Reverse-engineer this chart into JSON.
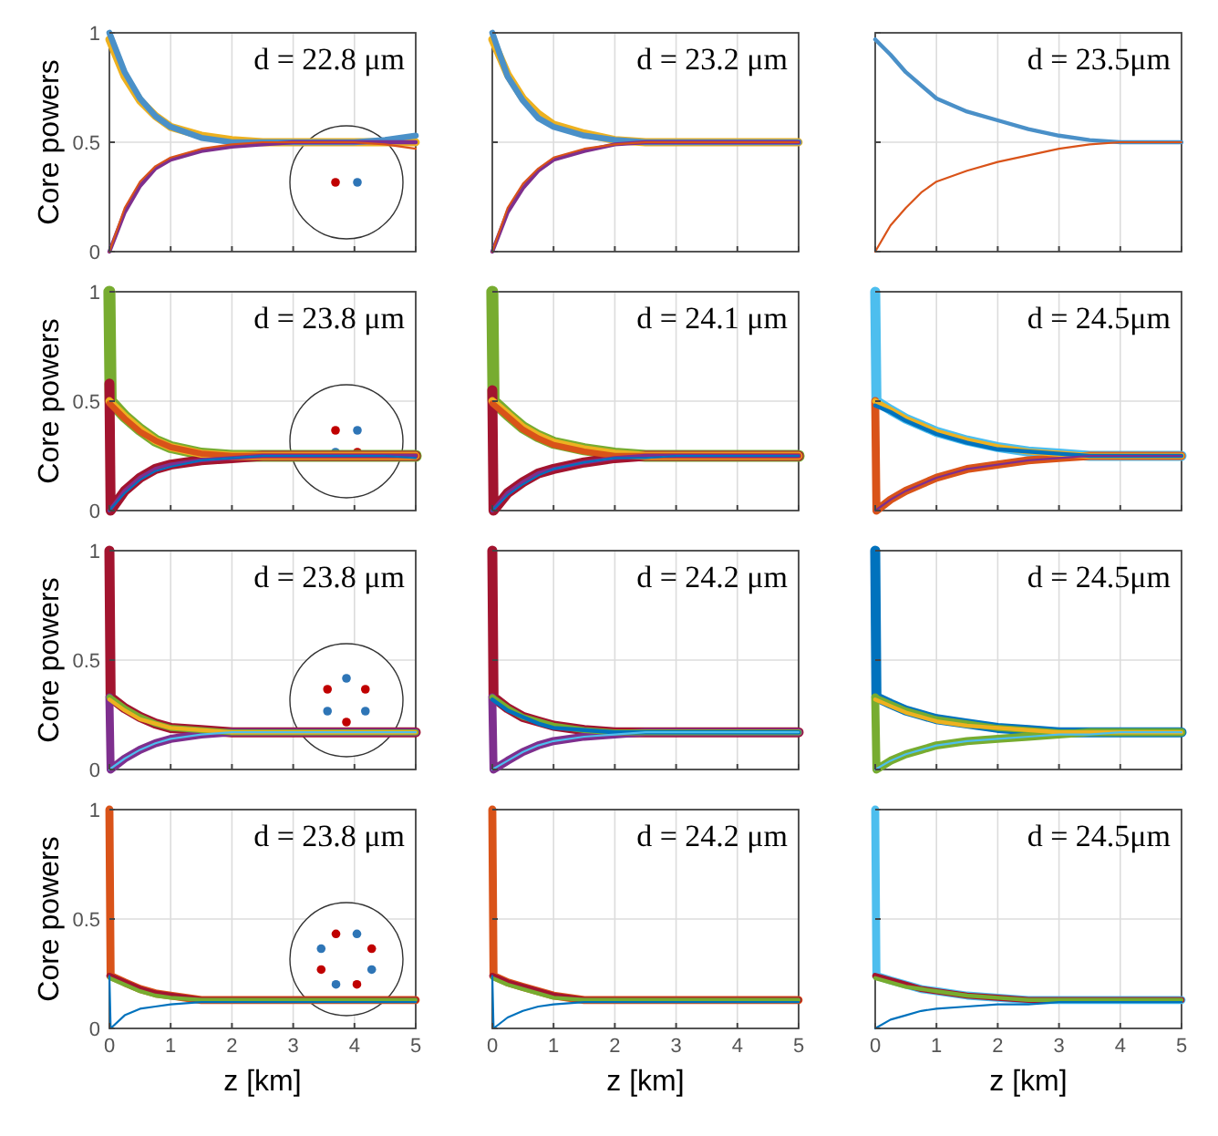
{
  "chart_data": [
    {
      "type": "line",
      "ylabel": "Core powers",
      "annotations": [
        "d = 22.8 μm"
      ],
      "x": [
        0,
        0.25,
        0.5,
        0.75,
        1,
        1.5,
        2,
        2.5,
        3,
        3.5,
        4,
        4.5,
        5
      ],
      "xlim": [
        0,
        5
      ],
      "xticks": [
        0,
        1,
        2,
        3,
        4,
        5
      ],
      "ylim": [
        0,
        1
      ],
      "yticks": [
        0,
        0.5,
        1
      ],
      "grid": true,
      "tick_labels": "y",
      "series": [
        {
          "color": "#edb120",
          "values": [
            0.97,
            0.8,
            0.69,
            0.62,
            0.57,
            0.53,
            0.51,
            0.5,
            0.5,
            0.5,
            0.5,
            0.5,
            0.5
          ]
        },
        {
          "color": "#4a90c8",
          "values": [
            1,
            0.82,
            0.7,
            0.62,
            0.57,
            0.52,
            0.5,
            0.5,
            0.5,
            0.5,
            0.5,
            0.51,
            0.53
          ]
        },
        {
          "color": "#7e2f8e",
          "values": [
            0,
            0.18,
            0.3,
            0.38,
            0.42,
            0.46,
            0.48,
            0.49,
            0.5,
            0.5,
            0.5,
            0.5,
            0.5
          ]
        },
        {
          "color": "#d95319",
          "values": [
            0,
            0.2,
            0.32,
            0.39,
            0.43,
            0.47,
            0.49,
            0.5,
            0.5,
            0.5,
            0.5,
            0.49,
            0.47
          ]
        }
      ]
    },
    {
      "type": "line",
      "annotations": [
        "d = 23.2 μm"
      ],
      "x": [
        0,
        0.25,
        0.5,
        0.75,
        1,
        1.5,
        2,
        2.5,
        3,
        3.5,
        4,
        4.5,
        5
      ],
      "xlim": [
        0,
        5
      ],
      "xticks": [
        0,
        1,
        2,
        3,
        4,
        5
      ],
      "ylim": [
        0,
        1
      ],
      "yticks": [
        0,
        0.5,
        1
      ],
      "grid": true,
      "tick_labels": false,
      "series": [
        {
          "color": "#edb120",
          "values": [
            0.97,
            0.81,
            0.7,
            0.63,
            0.58,
            0.54,
            0.51,
            0.5,
            0.5,
            0.5,
            0.5,
            0.5,
            0.5
          ]
        },
        {
          "color": "#4a90c8",
          "values": [
            1,
            0.8,
            0.69,
            0.61,
            0.57,
            0.53,
            0.51,
            0.5,
            0.5,
            0.5,
            0.5,
            0.5,
            0.5
          ]
        },
        {
          "color": "#7e2f8e",
          "values": [
            0,
            0.18,
            0.29,
            0.37,
            0.42,
            0.46,
            0.49,
            0.5,
            0.5,
            0.5,
            0.5,
            0.5,
            0.5
          ]
        },
        {
          "color": "#d95319",
          "values": [
            0,
            0.2,
            0.31,
            0.38,
            0.43,
            0.47,
            0.49,
            0.5,
            0.5,
            0.5,
            0.5,
            0.5,
            0.5
          ]
        }
      ]
    },
    {
      "type": "line",
      "annotations": [
        "d = 23.5μm"
      ],
      "x": [
        0,
        0.25,
        0.5,
        0.75,
        1,
        1.5,
        2,
        2.5,
        3,
        3.5,
        4,
        4.5,
        5
      ],
      "xlim": [
        0,
        5
      ],
      "xticks": [
        0,
        1,
        2,
        3,
        4,
        5
      ],
      "ylim": [
        0,
        1
      ],
      "yticks": [
        0,
        0.5,
        1
      ],
      "grid": true,
      "tick_labels": false,
      "series": [
        {
          "color": "#4a90c8",
          "values": [
            0.97,
            0.9,
            0.82,
            0.76,
            0.7,
            0.64,
            0.6,
            0.56,
            0.53,
            0.51,
            0.5,
            0.5,
            0.5
          ]
        },
        {
          "color": "#d95319",
          "values": [
            0,
            0.12,
            0.2,
            0.27,
            0.32,
            0.37,
            0.41,
            0.44,
            0.47,
            0.49,
            0.5,
            0.5,
            0.5
          ]
        }
      ]
    },
    {
      "type": "line",
      "ylabel": "Core powers",
      "annotations": [
        "d = 23.8 μm"
      ],
      "x": [
        0,
        0.25,
        0.5,
        0.75,
        1,
        1.5,
        2,
        2.5,
        3,
        3.5,
        4,
        4.5,
        5
      ],
      "xlim": [
        0,
        5
      ],
      "xticks": [
        0,
        1,
        2,
        3,
        4,
        5
      ],
      "ylim": [
        0,
        1
      ],
      "yticks": [
        0,
        0.5,
        1
      ],
      "grid": true,
      "tick_labels": "y",
      "series": [
        {
          "color": "#77ac30",
          "x": [
            0,
            0.02,
            0.25,
            0.5,
            0.75,
            1,
            1.5,
            2,
            2.5,
            3,
            3.5,
            4,
            4.5,
            5
          ],
          "values": [
            1,
            0.5,
            0.43,
            0.37,
            0.32,
            0.29,
            0.26,
            0.25,
            0.25,
            0.25,
            0.25,
            0.25,
            0.25,
            0.25
          ]
        },
        {
          "color": "#a2142f",
          "x": [
            0,
            0.02,
            0.25,
            0.5,
            0.75,
            1,
            1.5,
            2,
            2.5,
            3,
            3.5,
            4,
            4.5,
            5
          ],
          "values": [
            0.58,
            0,
            0.09,
            0.15,
            0.19,
            0.21,
            0.23,
            0.24,
            0.25,
            0.25,
            0.25,
            0.25,
            0.25,
            0.25
          ]
        },
        {
          "color": "#edb120",
          "values": [
            0.5,
            0.43,
            0.37,
            0.32,
            0.29,
            0.26,
            0.25,
            0.25,
            0.25,
            0.25,
            0.25,
            0.25,
            0.25
          ]
        },
        {
          "color": "#d95319",
          "values": [
            0.49,
            0.42,
            0.36,
            0.32,
            0.29,
            0.26,
            0.25,
            0.25,
            0.25,
            0.25,
            0.25,
            0.25,
            0.25
          ]
        },
        {
          "color": "#7e2f8e",
          "values": [
            0,
            0.09,
            0.15,
            0.19,
            0.21,
            0.23,
            0.24,
            0.25,
            0.25,
            0.25,
            0.25,
            0.25,
            0.25
          ]
        },
        {
          "color": "#0072bd",
          "values": [
            0,
            0.08,
            0.14,
            0.18,
            0.2,
            0.23,
            0.24,
            0.25,
            0.25,
            0.25,
            0.25,
            0.25,
            0.24
          ]
        }
      ]
    },
    {
      "type": "line",
      "annotations": [
        "d = 24.1 μm"
      ],
      "x": [
        0,
        0.25,
        0.5,
        0.75,
        1,
        1.5,
        2,
        2.5,
        3,
        3.5,
        4,
        4.5,
        5
      ],
      "xlim": [
        0,
        5
      ],
      "xticks": [
        0,
        1,
        2,
        3,
        4,
        5
      ],
      "ylim": [
        0,
        1
      ],
      "yticks": [
        0,
        0.5,
        1
      ],
      "grid": true,
      "tick_labels": false,
      "series": [
        {
          "color": "#77ac30",
          "x": [
            0,
            0.02,
            0.25,
            0.5,
            0.75,
            1,
            1.5,
            2,
            2.5,
            3,
            3.5,
            4,
            4.5,
            5
          ],
          "values": [
            1,
            0.5,
            0.44,
            0.38,
            0.34,
            0.31,
            0.28,
            0.26,
            0.25,
            0.25,
            0.25,
            0.25,
            0.25,
            0.25
          ]
        },
        {
          "color": "#a2142f",
          "x": [
            0,
            0.02,
            0.25,
            0.5,
            0.75,
            1,
            1.5,
            2,
            2.5,
            3,
            3.5,
            4,
            4.5,
            5
          ],
          "values": [
            0.55,
            0,
            0.08,
            0.13,
            0.17,
            0.19,
            0.22,
            0.24,
            0.25,
            0.25,
            0.25,
            0.25,
            0.25,
            0.25
          ]
        },
        {
          "color": "#edb120",
          "values": [
            0.5,
            0.44,
            0.38,
            0.34,
            0.31,
            0.28,
            0.26,
            0.25,
            0.25,
            0.25,
            0.25,
            0.25,
            0.25
          ]
        },
        {
          "color": "#d95319",
          "values": [
            0.49,
            0.43,
            0.37,
            0.33,
            0.3,
            0.27,
            0.25,
            0.25,
            0.25,
            0.25,
            0.25,
            0.25,
            0.25
          ]
        },
        {
          "color": "#7e2f8e",
          "values": [
            0,
            0.08,
            0.13,
            0.17,
            0.19,
            0.22,
            0.24,
            0.25,
            0.25,
            0.25,
            0.25,
            0.25,
            0.25
          ]
        },
        {
          "color": "#0072bd",
          "values": [
            0,
            0.07,
            0.12,
            0.16,
            0.19,
            0.22,
            0.24,
            0.24,
            0.25,
            0.25,
            0.25,
            0.25,
            0.25
          ]
        }
      ]
    },
    {
      "type": "line",
      "annotations": [
        "d = 24.5μm"
      ],
      "x": [
        0,
        0.25,
        0.5,
        0.75,
        1,
        1.5,
        2,
        2.5,
        3,
        3.5,
        4,
        4.5,
        5
      ],
      "xlim": [
        0,
        5
      ],
      "xticks": [
        0,
        1,
        2,
        3,
        4,
        5
      ],
      "ylim": [
        0,
        1
      ],
      "yticks": [
        0,
        0.5,
        1
      ],
      "grid": true,
      "tick_labels": false,
      "series": [
        {
          "color": "#4dbeee",
          "x": [
            0,
            0.02,
            0.25,
            0.5,
            0.75,
            1,
            1.5,
            2,
            2.5,
            3,
            3.5,
            4,
            4.5,
            5
          ],
          "values": [
            1,
            0.5,
            0.46,
            0.42,
            0.39,
            0.36,
            0.32,
            0.29,
            0.27,
            0.26,
            0.25,
            0.25,
            0.25,
            0.25
          ]
        },
        {
          "color": "#d95319",
          "x": [
            0,
            0.02,
            0.25,
            0.5,
            0.75,
            1,
            1.5,
            2,
            2.5,
            3,
            3.5,
            4,
            4.5,
            5
          ],
          "values": [
            0.5,
            0,
            0.05,
            0.09,
            0.12,
            0.15,
            0.19,
            0.21,
            0.23,
            0.24,
            0.25,
            0.25,
            0.25,
            0.25
          ]
        },
        {
          "color": "#edb120",
          "values": [
            0.5,
            0.46,
            0.42,
            0.39,
            0.36,
            0.32,
            0.29,
            0.27,
            0.26,
            0.25,
            0.25,
            0.25,
            0.25
          ]
        },
        {
          "color": "#0072bd",
          "values": [
            0.48,
            0.45,
            0.41,
            0.38,
            0.35,
            0.31,
            0.28,
            0.27,
            0.26,
            0.25,
            0.25,
            0.25,
            0.25
          ]
        },
        {
          "color": "#7e2f8e",
          "values": [
            0,
            0.05,
            0.09,
            0.12,
            0.15,
            0.19,
            0.21,
            0.23,
            0.24,
            0.25,
            0.25,
            0.25,
            0.25
          ]
        }
      ]
    },
    {
      "type": "line",
      "ylabel": "Core powers",
      "annotations": [
        "d = 23.8 μm"
      ],
      "x": [
        0,
        0.25,
        0.5,
        0.75,
        1,
        1.5,
        2,
        2.5,
        3,
        3.5,
        4,
        4.5,
        5
      ],
      "xlim": [
        0,
        5
      ],
      "xticks": [
        0,
        1,
        2,
        3,
        4,
        5
      ],
      "ylim": [
        0,
        1
      ],
      "yticks": [
        0,
        0.5,
        1
      ],
      "grid": true,
      "tick_labels": "y",
      "series": [
        {
          "color": "#a2142f",
          "x": [
            0,
            0.02,
            0.25,
            0.5,
            0.75,
            1,
            1.5,
            2,
            2.5,
            3,
            3.5,
            4,
            4.5,
            5
          ],
          "values": [
            1,
            0.33,
            0.28,
            0.24,
            0.21,
            0.19,
            0.18,
            0.17,
            0.17,
            0.17,
            0.17,
            0.17,
            0.17,
            0.17
          ]
        },
        {
          "color": "#7e2f8e",
          "x": [
            0,
            0.02,
            0.25,
            0.5,
            0.75,
            1,
            1.5,
            2,
            2.5,
            3,
            3.5,
            4,
            4.5,
            5
          ],
          "values": [
            0.33,
            0,
            0.05,
            0.09,
            0.12,
            0.14,
            0.16,
            0.17,
            0.17,
            0.17,
            0.17,
            0.17,
            0.17,
            0.17
          ]
        },
        {
          "color": "#77ac30",
          "values": [
            0.33,
            0.28,
            0.24,
            0.21,
            0.19,
            0.18,
            0.17,
            0.17,
            0.17,
            0.17,
            0.17,
            0.17,
            0.17
          ]
        },
        {
          "color": "#edb120",
          "values": [
            0.32,
            0.27,
            0.23,
            0.21,
            0.19,
            0.18,
            0.17,
            0.17,
            0.17,
            0.17,
            0.17,
            0.17,
            0.17
          ]
        },
        {
          "color": "#4dbeee",
          "values": [
            0,
            0.05,
            0.09,
            0.12,
            0.14,
            0.16,
            0.17,
            0.17,
            0.17,
            0.17,
            0.17,
            0.17,
            0.17
          ]
        }
      ]
    },
    {
      "type": "line",
      "annotations": [
        "d = 24.2 μm"
      ],
      "x": [
        0,
        0.25,
        0.5,
        0.75,
        1,
        1.5,
        2,
        2.5,
        3,
        3.5,
        4,
        4.5,
        5
      ],
      "xlim": [
        0,
        5
      ],
      "xticks": [
        0,
        1,
        2,
        3,
        4,
        5
      ],
      "ylim": [
        0,
        1
      ],
      "yticks": [
        0,
        0.5,
        1
      ],
      "grid": true,
      "tick_labels": false,
      "series": [
        {
          "color": "#a2142f",
          "x": [
            0,
            0.02,
            0.25,
            0.5,
            0.75,
            1,
            1.5,
            2,
            2.5,
            3,
            3.5,
            4,
            4.5,
            5
          ],
          "values": [
            1,
            0.33,
            0.28,
            0.24,
            0.22,
            0.2,
            0.18,
            0.17,
            0.17,
            0.17,
            0.17,
            0.17,
            0.17,
            0.17
          ]
        },
        {
          "color": "#7e2f8e",
          "x": [
            0,
            0.02,
            0.25,
            0.5,
            0.75,
            1,
            1.5,
            2,
            2.5,
            3,
            3.5,
            4,
            4.5,
            5
          ],
          "values": [
            0.33,
            0,
            0.04,
            0.08,
            0.11,
            0.13,
            0.15,
            0.16,
            0.17,
            0.17,
            0.17,
            0.17,
            0.17,
            0.17
          ]
        },
        {
          "color": "#77ac30",
          "values": [
            0.33,
            0.28,
            0.24,
            0.22,
            0.2,
            0.18,
            0.17,
            0.17,
            0.17,
            0.17,
            0.17,
            0.17,
            0.17
          ]
        },
        {
          "color": "#0072bd",
          "values": [
            0.32,
            0.27,
            0.24,
            0.21,
            0.19,
            0.18,
            0.17,
            0.17,
            0.17,
            0.17,
            0.17,
            0.17,
            0.17
          ]
        },
        {
          "color": "#4dbeee",
          "values": [
            0,
            0.04,
            0.08,
            0.11,
            0.13,
            0.15,
            0.16,
            0.17,
            0.17,
            0.17,
            0.17,
            0.17,
            0.17
          ]
        }
      ]
    },
    {
      "type": "line",
      "annotations": [
        "d = 24.5μm"
      ],
      "x": [
        0,
        0.25,
        0.5,
        0.75,
        1,
        1.5,
        2,
        2.5,
        3,
        3.5,
        4,
        4.5,
        5
      ],
      "xlim": [
        0,
        5
      ],
      "xticks": [
        0,
        1,
        2,
        3,
        4,
        5
      ],
      "ylim": [
        0,
        1
      ],
      "yticks": [
        0,
        0.5,
        1
      ],
      "grid": true,
      "tick_labels": false,
      "series": [
        {
          "color": "#0072bd",
          "x": [
            0,
            0.02,
            0.25,
            0.5,
            0.75,
            1,
            1.5,
            2,
            2.5,
            3,
            3.5,
            4,
            4.5,
            5
          ],
          "values": [
            1,
            0.33,
            0.3,
            0.27,
            0.25,
            0.23,
            0.21,
            0.19,
            0.18,
            0.17,
            0.17,
            0.17,
            0.17,
            0.17
          ]
        },
        {
          "color": "#77ac30",
          "x": [
            0,
            0.02,
            0.25,
            0.5,
            0.75,
            1,
            1.5,
            2,
            2.5,
            3,
            3.5,
            4,
            4.5,
            5
          ],
          "values": [
            0.33,
            0,
            0.04,
            0.07,
            0.09,
            0.11,
            0.13,
            0.14,
            0.15,
            0.16,
            0.17,
            0.17,
            0.17,
            0.17
          ]
        },
        {
          "color": "#77ac30",
          "values": [
            0.33,
            0.3,
            0.27,
            0.25,
            0.23,
            0.21,
            0.19,
            0.18,
            0.17,
            0.17,
            0.17,
            0.17,
            0.17
          ]
        },
        {
          "color": "#edb120",
          "values": [
            0.32,
            0.29,
            0.26,
            0.24,
            0.22,
            0.2,
            0.19,
            0.18,
            0.17,
            0.17,
            0.17,
            0.17,
            0.17
          ]
        },
        {
          "color": "#4dbeee",
          "values": [
            0,
            0.04,
            0.07,
            0.09,
            0.11,
            0.13,
            0.14,
            0.15,
            0.16,
            0.16,
            0.17,
            0.17,
            0.17
          ]
        }
      ]
    },
    {
      "type": "line",
      "ylabel": "Core powers",
      "xlabel": "z [km]",
      "annotations": [
        "d = 23.8 μm"
      ],
      "x": [
        0,
        0.25,
        0.5,
        0.75,
        1,
        1.5,
        2,
        2.5,
        3,
        3.5,
        4,
        4.5,
        5
      ],
      "xlim": [
        0,
        5
      ],
      "xticks": [
        0,
        1,
        2,
        3,
        4,
        5
      ],
      "ylim": [
        0,
        1
      ],
      "yticks": [
        0,
        0.5,
        1
      ],
      "grid": true,
      "series": [
        {
          "color": "#d95319",
          "x": [
            0,
            0.02,
            0.25,
            0.5,
            0.75,
            1,
            1.5,
            2,
            2.5,
            3,
            3.5,
            4,
            4.5,
            5
          ],
          "values": [
            1,
            0.24,
            0.21,
            0.18,
            0.16,
            0.15,
            0.13,
            0.13,
            0.13,
            0.13,
            0.13,
            0.13,
            0.13,
            0.13
          ]
        },
        {
          "color": "#a2142f",
          "values": [
            0.24,
            0.21,
            0.18,
            0.16,
            0.15,
            0.13,
            0.13,
            0.13,
            0.13,
            0.13,
            0.13,
            0.13,
            0.13
          ]
        },
        {
          "color": "#77ac30",
          "values": [
            0.23,
            0.2,
            0.17,
            0.15,
            0.14,
            0.13,
            0.13,
            0.13,
            0.13,
            0.13,
            0.13,
            0.13,
            0.13
          ]
        },
        {
          "color": "#0072bd",
          "x": [
            0,
            0.02,
            0.25,
            0.5,
            0.75,
            1,
            1.5,
            2,
            2.5,
            3,
            3.5,
            4,
            4.5,
            5
          ],
          "values": [
            0.24,
            0,
            0.06,
            0.09,
            0.1,
            0.11,
            0.12,
            0.12,
            0.12,
            0.12,
            0.12,
            0.12,
            0.12,
            0.12
          ]
        }
      ]
    },
    {
      "type": "line",
      "xlabel": "z [km]",
      "annotations": [
        "d = 24.2 μm"
      ],
      "x": [
        0,
        0.25,
        0.5,
        0.75,
        1,
        1.5,
        2,
        2.5,
        3,
        3.5,
        4,
        4.5,
        5
      ],
      "xlim": [
        0,
        5
      ],
      "xticks": [
        0,
        1,
        2,
        3,
        4,
        5
      ],
      "ylim": [
        0,
        1
      ],
      "yticks": [
        0,
        0.5,
        1
      ],
      "grid": true,
      "tick_labels": "x",
      "series": [
        {
          "color": "#d95319",
          "x": [
            0,
            0.02,
            0.25,
            0.5,
            0.75,
            1,
            1.5,
            2,
            2.5,
            3,
            3.5,
            4,
            4.5,
            5
          ],
          "values": [
            1,
            0.24,
            0.21,
            0.19,
            0.17,
            0.15,
            0.13,
            0.13,
            0.13,
            0.13,
            0.13,
            0.13,
            0.13,
            0.13
          ]
        },
        {
          "color": "#a2142f",
          "values": [
            0.24,
            0.21,
            0.19,
            0.17,
            0.15,
            0.13,
            0.13,
            0.13,
            0.13,
            0.13,
            0.13,
            0.13,
            0.13
          ]
        },
        {
          "color": "#77ac30",
          "values": [
            0.23,
            0.2,
            0.18,
            0.16,
            0.14,
            0.13,
            0.13,
            0.13,
            0.13,
            0.13,
            0.13,
            0.13,
            0.13
          ]
        },
        {
          "color": "#0072bd",
          "x": [
            0,
            0.02,
            0.25,
            0.5,
            0.75,
            1,
            1.5,
            2,
            2.5,
            3,
            3.5,
            4,
            4.5,
            5
          ],
          "values": [
            0.24,
            0,
            0.05,
            0.08,
            0.1,
            0.11,
            0.12,
            0.12,
            0.12,
            0.12,
            0.12,
            0.12,
            0.12,
            0.12
          ]
        }
      ]
    },
    {
      "type": "line",
      "xlabel": "z [km]",
      "annotations": [
        "d = 24.5μm"
      ],
      "x": [
        0,
        0.25,
        0.5,
        0.75,
        1,
        1.5,
        2,
        2.5,
        3,
        3.5,
        4,
        4.5,
        5
      ],
      "xlim": [
        0,
        5
      ],
      "xticks": [
        0,
        1,
        2,
        3,
        4,
        5
      ],
      "ylim": [
        0,
        1
      ],
      "yticks": [
        0,
        0.5,
        1
      ],
      "grid": true,
      "tick_labels": "x",
      "series": [
        {
          "color": "#4dbeee",
          "x": [
            0,
            0.02,
            0.25,
            0.5,
            0.75,
            1,
            1.5,
            2,
            2.5,
            3,
            3.5,
            4,
            4.5,
            5
          ],
          "values": [
            1,
            0.24,
            0.22,
            0.2,
            0.18,
            0.17,
            0.15,
            0.14,
            0.13,
            0.13,
            0.13,
            0.13,
            0.13,
            0.13
          ]
        },
        {
          "color": "#a2142f",
          "values": [
            0.24,
            0.22,
            0.2,
            0.18,
            0.17,
            0.15,
            0.14,
            0.13,
            0.13,
            0.13,
            0.13,
            0.13,
            0.13
          ]
        },
        {
          "color": "#77ac30",
          "values": [
            0.23,
            0.21,
            0.19,
            0.18,
            0.17,
            0.15,
            0.14,
            0.13,
            0.13,
            0.13,
            0.13,
            0.13,
            0.13
          ]
        },
        {
          "color": "#0072bd",
          "values": [
            0,
            0.04,
            0.06,
            0.08,
            0.09,
            0.1,
            0.11,
            0.11,
            0.12,
            0.12,
            0.12,
            0.12,
            0.12
          ]
        }
      ]
    }
  ]
}
